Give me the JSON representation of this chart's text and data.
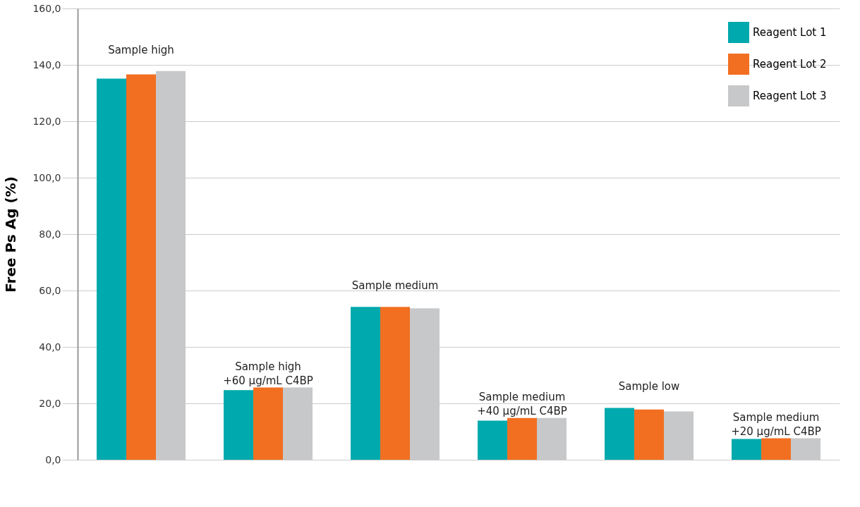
{
  "chart_data": {
    "type": "bar",
    "ylabel": "Free Ps Ag (%)",
    "categories": [
      "Sample high",
      "Sample high\n+60 µg/mL C4BP",
      "Sample medium",
      "Sample medium\n+40 µg/mL C4BP",
      "Sample low",
      "Sample medium\n+20 µg/mL C4BP"
    ],
    "series": [
      {
        "name": "Reagent Lot 1",
        "color": "#00a9ad",
        "values": [
          135.1,
          24.7,
          54.2,
          13.9,
          18.4,
          7.4
        ]
      },
      {
        "name": "Reagent Lot 2",
        "color": "#f26f21",
        "values": [
          136.6,
          25.6,
          54.2,
          14.8,
          17.8,
          7.6
        ]
      },
      {
        "name": "Reagent Lot 3",
        "color": "#c7c8ca",
        "values": [
          137.8,
          25.6,
          53.7,
          14.8,
          17.1,
          7.6
        ]
      }
    ],
    "ylim": [
      0,
      160
    ],
    "yticks": [
      {
        "value": 0,
        "label": "0,0"
      },
      {
        "value": 20,
        "label": "20,0"
      },
      {
        "value": 40,
        "label": "40,0"
      },
      {
        "value": 60,
        "label": "60,0"
      },
      {
        "value": 80,
        "label": "80,0"
      },
      {
        "value": 100,
        "label": "100,0"
      },
      {
        "value": 120,
        "label": "120,0"
      },
      {
        "value": 140,
        "label": "140,0"
      },
      {
        "value": 160,
        "label": "160,0"
      }
    ],
    "grid": "y",
    "legend": "top right",
    "tick_labels": "y"
  }
}
